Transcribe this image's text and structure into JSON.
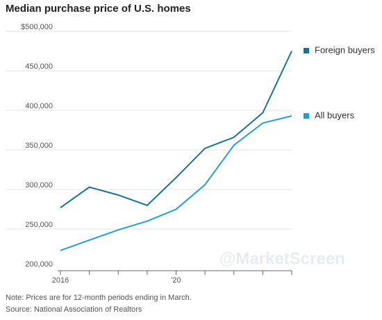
{
  "chart_data": {
    "type": "line",
    "title": "Median purchase price of U.S. homes",
    "categories": [
      "2016",
      null,
      null,
      null,
      "'20",
      null,
      null,
      null,
      null
    ],
    "series": [
      {
        "name": "Foreign buyers",
        "color": "#15709c",
        "values": [
          277000,
          303000,
          293000,
          280000,
          315000,
          352000,
          366000,
          397000,
          475000
        ]
      },
      {
        "name": "All buyers",
        "color": "#1f9fd6",
        "values": [
          223000,
          236000,
          249000,
          260000,
          275000,
          306000,
          356000,
          384000,
          393000
        ]
      }
    ],
    "ylim": [
      200000,
      500000
    ],
    "yticks": [
      {
        "value": 200000,
        "label": "200,000"
      },
      {
        "value": 250000,
        "label": "250,000"
      },
      {
        "value": 300000,
        "label": "300,000"
      },
      {
        "value": 350000,
        "label": "350,000"
      },
      {
        "value": 400000,
        "label": "400,000"
      },
      {
        "value": 450000,
        "label": "450,000"
      },
      {
        "value": 500000,
        "label": "$500,000"
      }
    ],
    "grid": true,
    "note": "Note: Prices are for 12-month periods ending in March.",
    "source": "Source: National Association of Realtors",
    "watermark": "@MarketScreen"
  }
}
